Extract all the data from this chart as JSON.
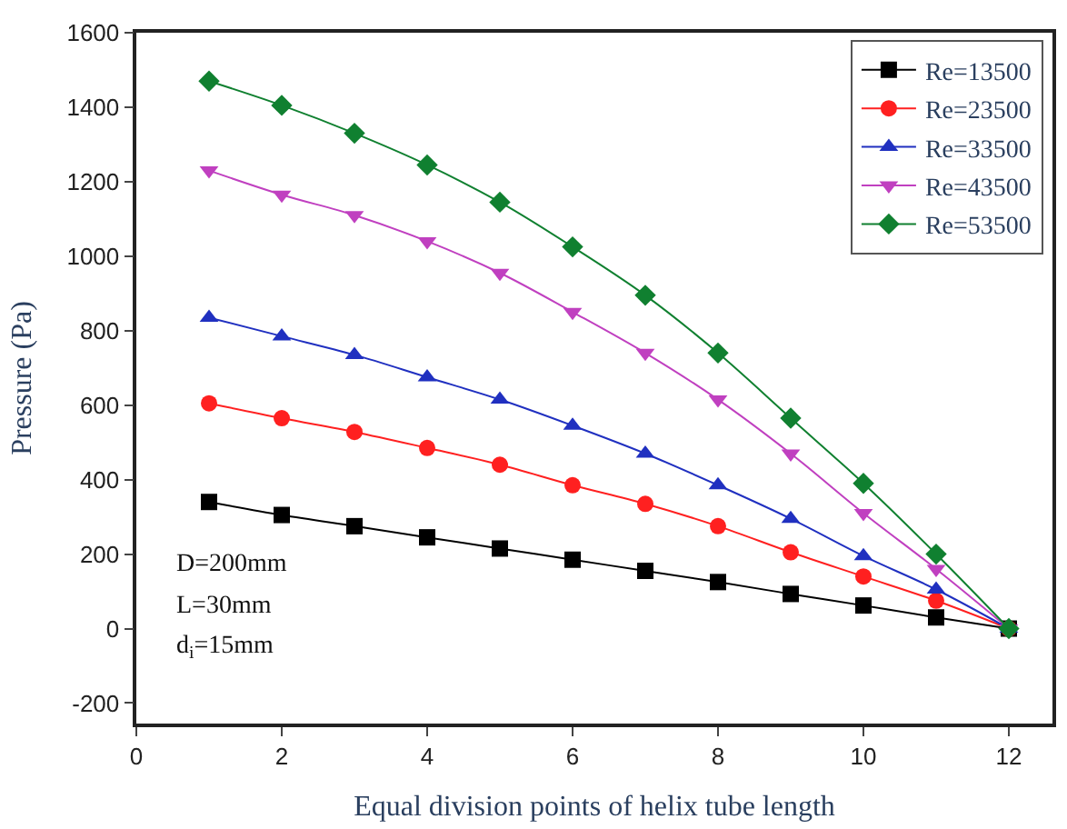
{
  "chart_data": {
    "type": "line",
    "xlabel": "Equal division points of helix tube length",
    "ylabel": "Pressure (Pa)",
    "x": [
      1,
      2,
      3,
      4,
      5,
      6,
      7,
      8,
      9,
      10,
      11,
      12
    ],
    "series": [
      {
        "name": "Re=13500",
        "color": "#000000",
        "marker": "square",
        "values": [
          340,
          305,
          275,
          245,
          215,
          185,
          155,
          125,
          93,
          62,
          30,
          0
        ]
      },
      {
        "name": "Re=23500",
        "color": "#ff2020",
        "marker": "circle",
        "values": [
          605,
          565,
          528,
          485,
          440,
          385,
          335,
          275,
          205,
          140,
          75,
          0
        ]
      },
      {
        "name": "Re=33500",
        "color": "#2030c0",
        "marker": "triangle",
        "values": [
          835,
          785,
          735,
          675,
          615,
          545,
          470,
          385,
          295,
          195,
          105,
          0
        ]
      },
      {
        "name": "Re=43500",
        "color": "#c040c0",
        "marker": "triangle-down",
        "values": [
          1230,
          1165,
          1110,
          1040,
          955,
          850,
          740,
          615,
          470,
          310,
          160,
          0
        ]
      },
      {
        "name": "Re=53500",
        "color": "#108030",
        "marker": "diamond",
        "values": [
          1470,
          1405,
          1330,
          1245,
          1145,
          1025,
          895,
          740,
          565,
          390,
          200,
          0
        ]
      }
    ],
    "xlim": [
      0,
      12.6
    ],
    "xticks": [
      0,
      2,
      4,
      6,
      8,
      10,
      12
    ],
    "ylim": [
      -255,
      1600
    ],
    "yticks": [
      -200,
      0,
      200,
      400,
      600,
      800,
      1000,
      1200,
      1400,
      1600
    ],
    "legend": "top right",
    "annotations": [
      "D=200mm",
      "L=30mm",
      "d$_{i}$=15mm"
    ]
  }
}
